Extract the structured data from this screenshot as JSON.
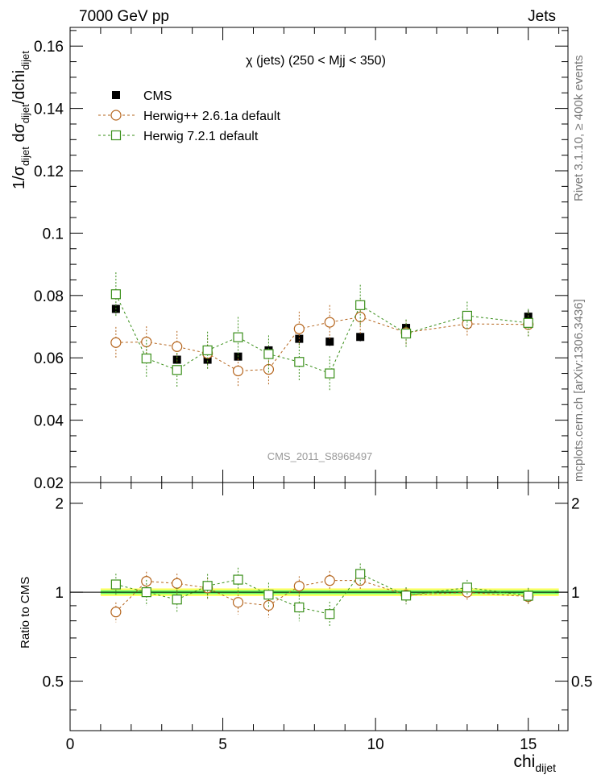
{
  "header": {
    "left": "7000 GeV pp",
    "right": "Jets",
    "side_top": "Rivet 3.1.10, ≥ 400k events",
    "side_bottom": "mcplots.cern.ch [arXiv:1306.3436]"
  },
  "chart_data": {
    "type": "scatter",
    "title": "χ (jets) (250 < Mjj <  350)",
    "watermark": "CMS_2011_S8968497",
    "xlabel": "chi",
    "xlabel_sub": "dijet",
    "ylabel_parts": [
      "1/σ",
      "dijet",
      " dσ",
      "dijet",
      "/dchi",
      "dijet"
    ],
    "ratio_ylabel": "Ratio to CMS",
    "xlim": [
      0,
      16.3
    ],
    "ylim": [
      0.02,
      0.166
    ],
    "ratio_ylim": [
      0.34,
      2.35
    ],
    "x_ticks": [
      "0",
      "5",
      "10",
      "15"
    ],
    "y_ticks": [
      "0.02",
      "0.04",
      "0.06",
      "0.08",
      "0.1",
      "0.12",
      "0.14",
      "0.16"
    ],
    "ratio_ticks": [
      "0.5",
      "1",
      "2"
    ],
    "legend_position": "top-left",
    "colors": {
      "cms": "#000000",
      "herwigpp": "#b5651d",
      "herwig7": "#3a8f1a",
      "band_inner": "#66ff66",
      "band_outer": "#ffff66"
    },
    "x": [
      1.5,
      2.5,
      3.5,
      4.5,
      5.5,
      6.5,
      7.5,
      8.5,
      9.5,
      11.0,
      13.0,
      15.0
    ],
    "series": [
      {
        "name": "CMS",
        "marker": "filled-square",
        "values": [
          0.0757,
          0.0598,
          0.0594,
          0.0594,
          0.0604,
          0.0624,
          0.0661,
          0.0652,
          0.0667,
          0.0696,
          0.0709,
          0.0732
        ],
        "errors": [
          0.0015,
          0.0012,
          0.0012,
          0.0012,
          0.0012,
          0.0012,
          0.0014,
          0.0014,
          0.0014,
          0.0015,
          0.0015,
          0.002
        ],
        "ratio_band": 0.03
      },
      {
        "name": "Herwig++ 2.6.1a default",
        "marker": "open-circle",
        "values": [
          0.0649,
          0.0651,
          0.0636,
          0.0614,
          0.0558,
          0.0563,
          0.0693,
          0.0714,
          0.0731,
          0.0681,
          0.0709,
          0.0707
        ],
        "errors": [
          0.005,
          0.005,
          0.005,
          0.005,
          0.005,
          0.005,
          0.0055,
          0.0055,
          0.0055,
          0.004,
          0.004,
          0.004
        ]
      },
      {
        "name": "Herwig 7.2.1 default",
        "marker": "open-square",
        "values": [
          0.0804,
          0.0598,
          0.0561,
          0.0624,
          0.0666,
          0.0612,
          0.0587,
          0.055,
          0.0769,
          0.0678,
          0.0735,
          0.0712
        ],
        "errors": [
          0.007,
          0.006,
          0.0055,
          0.006,
          0.0065,
          0.006,
          0.006,
          0.0055,
          0.0065,
          0.0045,
          0.0045,
          0.0045
        ]
      }
    ]
  }
}
